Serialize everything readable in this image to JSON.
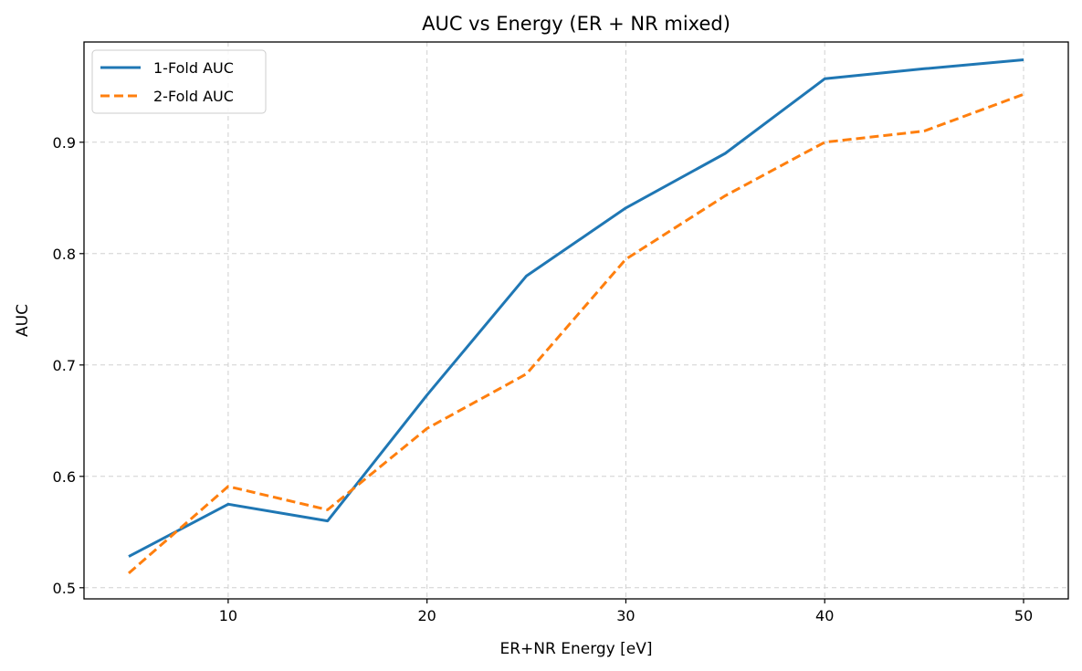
{
  "chart_data": {
    "type": "line",
    "title": "AUC vs Energy (ER + NR mixed)",
    "xlabel": "ER+NR Energy [eV]",
    "ylabel": "AUC",
    "x": [
      5,
      10,
      15,
      20,
      25,
      30,
      35,
      40,
      45,
      50
    ],
    "xlim": [
      2.75,
      52.25
    ],
    "ylim": [
      0.49,
      0.99
    ],
    "xticks": [
      10,
      20,
      30,
      40,
      50
    ],
    "yticks": [
      0.5,
      0.6,
      0.7,
      0.8,
      0.9
    ],
    "ytick_labels": [
      "0.5",
      "0.6",
      "0.7",
      "0.8",
      "0.9"
    ],
    "grid": true,
    "legend_position": "upper-left",
    "series": [
      {
        "name": "1-Fold AUC",
        "color": "#1f77b4",
        "style": "solid",
        "values": [
          0.528,
          0.575,
          0.56,
          0.673,
          0.78,
          0.841,
          0.89,
          0.957,
          0.966,
          0.974
        ]
      },
      {
        "name": "2-Fold AUC",
        "color": "#ff7f0e",
        "style": "dashed",
        "values": [
          0.513,
          0.591,
          0.57,
          0.643,
          0.692,
          0.795,
          0.852,
          0.9,
          0.91,
          0.943
        ]
      }
    ]
  }
}
